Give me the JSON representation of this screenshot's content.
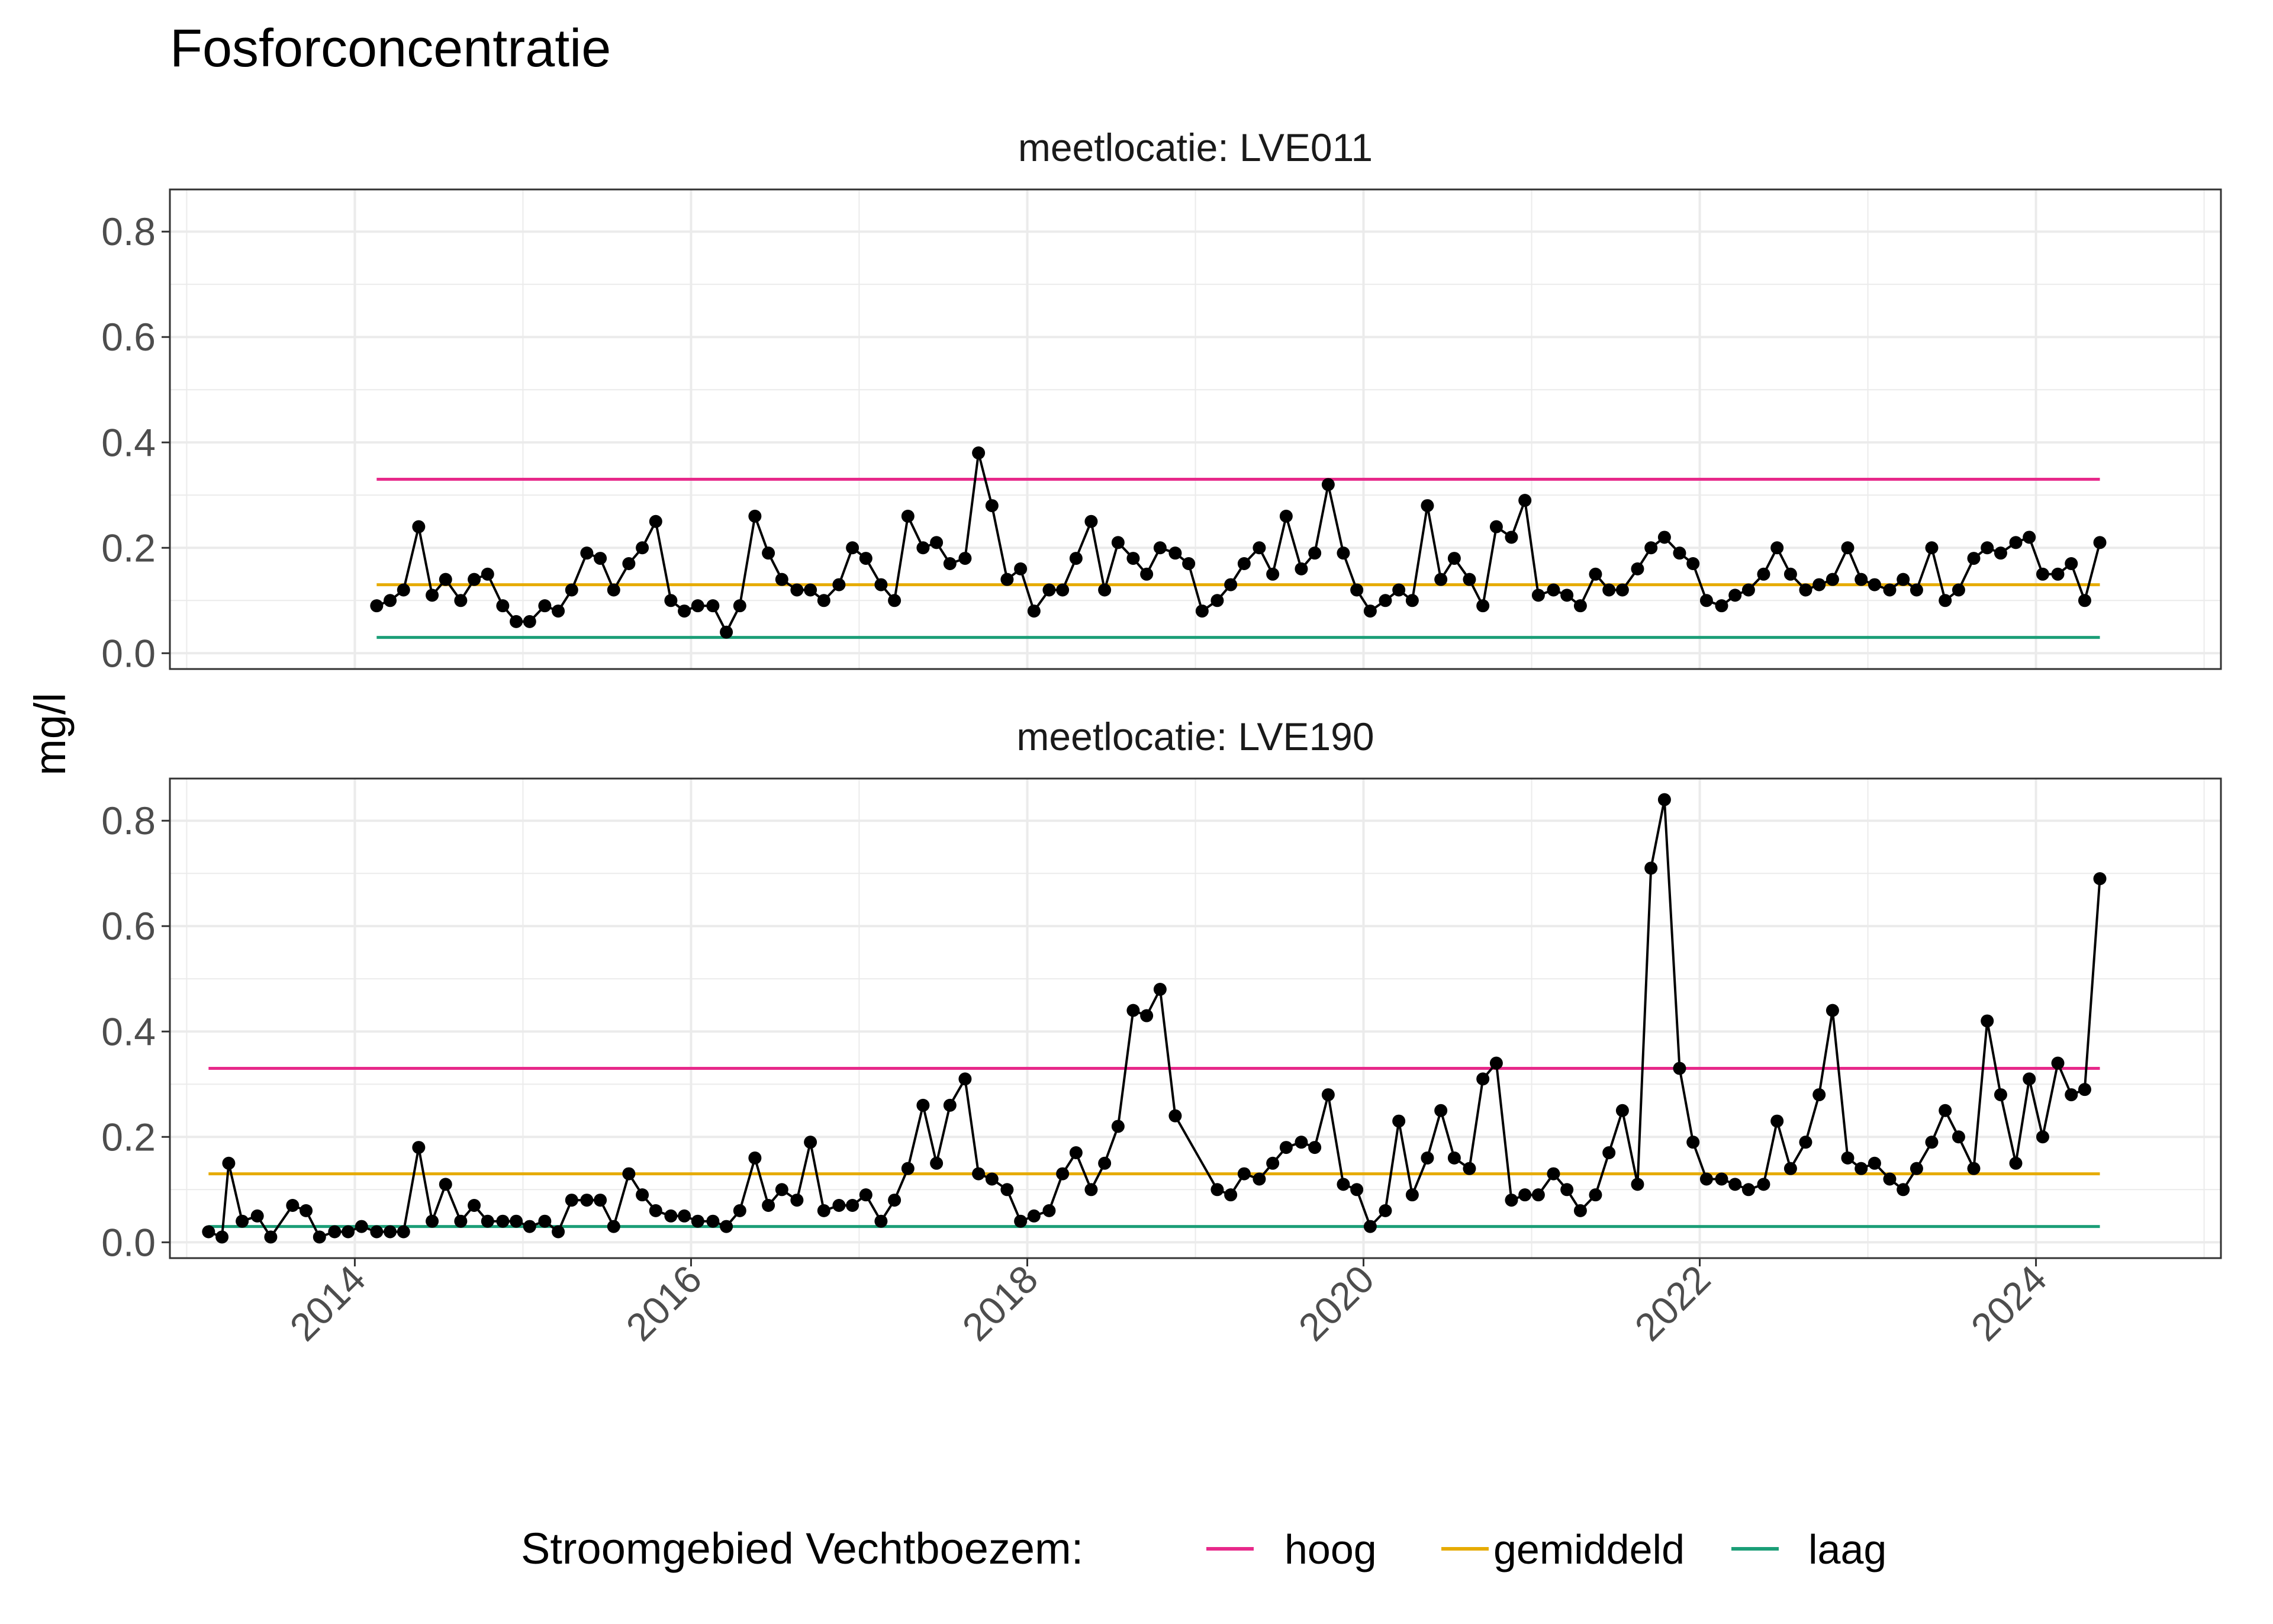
{
  "chart_data": {
    "type": "line",
    "title": "Fosforconcentratie",
    "ylabel": "mg/l",
    "xlabel": "",
    "x_ticks": [
      "2014",
      "2016",
      "2018",
      "2020",
      "2022",
      "2024"
    ],
    "y_ticks": [
      "0.0",
      "0.2",
      "0.4",
      "0.6",
      "0.8"
    ],
    "xlim": [
      2012.9,
      2025.1
    ],
    "ylim": [
      -0.03,
      0.88
    ],
    "grid": true,
    "legend": {
      "title": "Stroomgebied Vechtboezem:",
      "position": "bottom",
      "items": [
        {
          "label": "hoog",
          "color": "#e7298a"
        },
        {
          "label": "gemiddeld",
          "color": "#e6ab02"
        },
        {
          "label": "laag",
          "color": "#1b9e77"
        }
      ]
    },
    "series_color": "#000000",
    "panels": [
      {
        "label": "meetlocatie: LVE011",
        "reference_lines": {
          "x_start": 2014.13,
          "x_end": 2024.38,
          "hoog": 0.33,
          "gemiddeld": 0.13,
          "laag": 0.03
        },
        "x": [
          2014.13,
          2014.21,
          2014.29,
          2014.38,
          2014.46,
          2014.54,
          2014.63,
          2014.71,
          2014.79,
          2014.88,
          2014.96,
          2015.04,
          2015.13,
          2015.21,
          2015.29,
          2015.38,
          2015.46,
          2015.54,
          2015.63,
          2015.71,
          2015.79,
          2015.88,
          2015.96,
          2016.04,
          2016.13,
          2016.21,
          2016.29,
          2016.38,
          2016.46,
          2016.54,
          2016.63,
          2016.71,
          2016.79,
          2016.88,
          2016.96,
          2017.04,
          2017.13,
          2017.21,
          2017.29,
          2017.38,
          2017.46,
          2017.54,
          2017.63,
          2017.71,
          2017.79,
          2017.88,
          2017.96,
          2018.04,
          2018.13,
          2018.21,
          2018.29,
          2018.38,
          2018.46,
          2018.54,
          2018.63,
          2018.71,
          2018.79,
          2018.88,
          2018.96,
          2019.04,
          2019.13,
          2019.21,
          2019.29,
          2019.38,
          2019.46,
          2019.54,
          2019.63,
          2019.71,
          2019.79,
          2019.88,
          2019.96,
          2020.04,
          2020.13,
          2020.21,
          2020.29,
          2020.38,
          2020.46,
          2020.54,
          2020.63,
          2020.71,
          2020.79,
          2020.88,
          2020.96,
          2021.04,
          2021.13,
          2021.21,
          2021.29,
          2021.38,
          2021.46,
          2021.54,
          2021.63,
          2021.71,
          2021.79,
          2021.88,
          2021.96,
          2022.04,
          2022.13,
          2022.21,
          2022.29,
          2022.38,
          2022.46,
          2022.54,
          2022.63,
          2022.71,
          2022.79,
          2022.88,
          2022.96,
          2023.04,
          2023.13,
          2023.21,
          2023.29,
          2023.38,
          2023.46,
          2023.54,
          2023.63,
          2023.71,
          2023.79,
          2023.88,
          2023.96,
          2024.04,
          2024.13,
          2024.21,
          2024.29,
          2024.38
        ],
        "y": [
          0.09,
          0.1,
          0.12,
          0.24,
          0.11,
          0.14,
          0.1,
          0.14,
          0.15,
          0.09,
          0.06,
          0.06,
          0.09,
          0.08,
          0.12,
          0.19,
          0.18,
          0.12,
          0.17,
          0.2,
          0.25,
          0.1,
          0.08,
          0.09,
          0.09,
          0.04,
          0.09,
          0.26,
          0.19,
          0.14,
          0.12,
          0.12,
          0.1,
          0.13,
          0.2,
          0.18,
          0.13,
          0.1,
          0.26,
          0.2,
          0.21,
          0.17,
          0.18,
          0.38,
          0.28,
          0.14,
          0.16,
          0.08,
          0.12,
          0.12,
          0.18,
          0.25,
          0.12,
          0.21,
          0.18,
          0.15,
          0.2,
          0.19,
          0.17,
          0.08,
          0.1,
          0.13,
          0.17,
          0.2,
          0.15,
          0.26,
          0.16,
          0.19,
          0.32,
          0.19,
          0.12,
          0.08,
          0.1,
          0.12,
          0.1,
          0.28,
          0.14,
          0.18,
          0.14,
          0.09,
          0.24,
          0.22,
          0.29,
          0.11,
          0.12,
          0.11,
          0.09,
          0.15,
          0.12,
          0.12,
          0.16,
          0.2,
          0.22,
          0.19,
          0.17,
          0.1,
          0.09,
          0.11,
          0.12,
          0.15,
          0.2,
          0.15,
          0.12,
          0.13,
          0.14,
          0.2,
          0.14,
          0.13,
          0.12,
          0.14,
          0.12,
          0.2,
          0.1,
          0.12,
          0.18,
          0.2,
          0.19,
          0.21,
          0.22,
          0.15,
          0.15,
          0.17,
          0.1,
          0.21
        ]
      },
      {
        "label": "meetlocatie: LVE190",
        "reference_lines": {
          "x_start": 2013.13,
          "x_end": 2024.38,
          "hoog": 0.33,
          "gemiddeld": 0.13,
          "laag": 0.03
        },
        "x": [
          2013.13,
          2013.21,
          2013.25,
          2013.33,
          2013.42,
          2013.5,
          2013.63,
          2013.71,
          2013.79,
          2013.88,
          2013.96,
          2014.04,
          2014.13,
          2014.21,
          2014.29,
          2014.38,
          2014.46,
          2014.54,
          2014.63,
          2014.71,
          2014.79,
          2014.88,
          2014.96,
          2015.04,
          2015.13,
          2015.21,
          2015.29,
          2015.38,
          2015.46,
          2015.54,
          2015.63,
          2015.71,
          2015.79,
          2015.88,
          2015.96,
          2016.04,
          2016.13,
          2016.21,
          2016.29,
          2016.38,
          2016.46,
          2016.54,
          2016.63,
          2016.71,
          2016.79,
          2016.88,
          2016.96,
          2017.04,
          2017.13,
          2017.21,
          2017.29,
          2017.38,
          2017.46,
          2017.54,
          2017.63,
          2017.71,
          2017.79,
          2017.88,
          2017.96,
          2018.04,
          2018.13,
          2018.21,
          2018.29,
          2018.38,
          2018.46,
          2018.54,
          2018.63,
          2018.71,
          2018.79,
          2018.88,
          2019.13,
          2019.21,
          2019.29,
          2019.38,
          2019.46,
          2019.54,
          2019.63,
          2019.71,
          2019.79,
          2019.88,
          2019.96,
          2020.04,
          2020.13,
          2020.21,
          2020.29,
          2020.38,
          2020.46,
          2020.54,
          2020.63,
          2020.71,
          2020.79,
          2020.88,
          2020.96,
          2021.04,
          2021.13,
          2021.21,
          2021.29,
          2021.38,
          2021.46,
          2021.54,
          2021.63,
          2021.71,
          2021.79,
          2021.88,
          2021.96,
          2022.04,
          2022.13,
          2022.21,
          2022.29,
          2022.38,
          2022.46,
          2022.54,
          2022.63,
          2022.71,
          2022.79,
          2022.88,
          2022.96,
          2023.04,
          2023.13,
          2023.21,
          2023.29,
          2023.38,
          2023.46,
          2023.54,
          2023.63,
          2023.71,
          2023.79,
          2023.88,
          2023.96,
          2024.04,
          2024.13,
          2024.21,
          2024.29,
          2024.38
        ],
        "y": [
          0.02,
          0.01,
          0.15,
          0.04,
          0.05,
          0.01,
          0.07,
          0.06,
          0.01,
          0.02,
          0.02,
          0.03,
          0.02,
          0.02,
          0.02,
          0.18,
          0.04,
          0.11,
          0.04,
          0.07,
          0.04,
          0.04,
          0.04,
          0.03,
          0.04,
          0.02,
          0.08,
          0.08,
          0.08,
          0.03,
          0.13,
          0.09,
          0.06,
          0.05,
          0.05,
          0.04,
          0.04,
          0.03,
          0.06,
          0.16,
          0.07,
          0.1,
          0.08,
          0.19,
          0.06,
          0.07,
          0.07,
          0.09,
          0.04,
          0.08,
          0.14,
          0.26,
          0.15,
          0.26,
          0.31,
          0.13,
          0.12,
          0.1,
          0.04,
          0.05,
          0.06,
          0.13,
          0.17,
          0.1,
          0.15,
          0.22,
          0.44,
          0.43,
          0.48,
          0.24,
          0.1,
          0.09,
          0.13,
          0.12,
          0.15,
          0.18,
          0.19,
          0.18,
          0.28,
          0.11,
          0.1,
          0.03,
          0.06,
          0.23,
          0.09,
          0.16,
          0.25,
          0.16,
          0.14,
          0.31,
          0.34,
          0.08,
          0.09,
          0.09,
          0.13,
          0.1,
          0.06,
          0.09,
          0.17,
          0.25,
          0.11,
          0.71,
          0.84,
          0.33,
          0.19,
          0.12,
          0.12,
          0.11,
          0.1,
          0.11,
          0.23,
          0.14,
          0.19,
          0.28,
          0.44,
          0.16,
          0.14,
          0.15,
          0.12,
          0.1,
          0.14,
          0.19,
          0.25,
          0.2,
          0.14,
          0.42,
          0.28,
          0.15,
          0.31,
          0.2,
          0.34,
          0.28,
          0.29,
          0.69
        ]
      }
    ]
  }
}
